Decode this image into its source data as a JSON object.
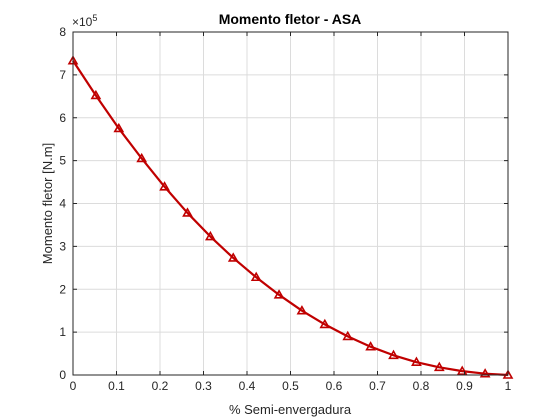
{
  "chart_data": {
    "type": "line",
    "title": "Momento fletor - ASA",
    "xlabel": "% Semi-envergadura",
    "ylabel": "Momento fletor [N.m]",
    "y_exponent_base": "×10",
    "y_exponent_power": "5",
    "xlim": [
      0,
      1
    ],
    "ylim": [
      0,
      8
    ],
    "x_ticks": [
      0,
      0.1,
      0.2,
      0.3,
      0.4,
      0.5,
      0.6,
      0.7,
      0.8,
      0.9,
      1
    ],
    "x_tick_labels": [
      "0",
      "0.1",
      "0.2",
      "0.3",
      "0.4",
      "0.5",
      "0.6",
      "0.7",
      "0.8",
      "0.9",
      "1"
    ],
    "y_ticks": [
      0,
      1,
      2,
      3,
      4,
      5,
      6,
      7,
      8
    ],
    "y_tick_labels": [
      "0",
      "1",
      "2",
      "3",
      "4",
      "5",
      "6",
      "7",
      "8"
    ],
    "grid": true,
    "marker": "triangle",
    "series": [
      {
        "color": "#c00000",
        "x": [
          0,
          0.0526,
          0.1053,
          0.1579,
          0.2105,
          0.2632,
          0.3158,
          0.3684,
          0.4211,
          0.4737,
          0.5263,
          0.5789,
          0.6316,
          0.6842,
          0.7368,
          0.7895,
          0.8421,
          0.8947,
          0.9474,
          1.0
        ],
        "y": [
          7.33,
          6.52,
          5.75,
          5.05,
          4.39,
          3.78,
          3.23,
          2.73,
          2.28,
          1.87,
          1.5,
          1.18,
          0.9,
          0.66,
          0.46,
          0.3,
          0.18,
          0.09,
          0.03,
          0.0
        ]
      }
    ]
  }
}
